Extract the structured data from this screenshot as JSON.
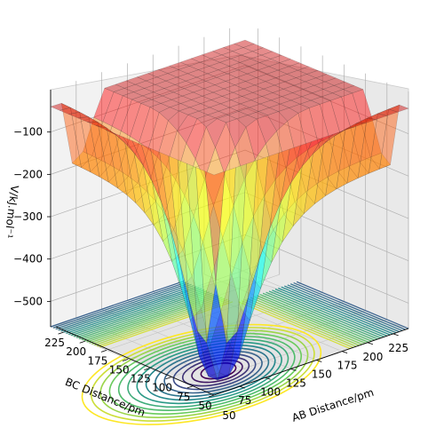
{
  "chart_data": {
    "type": "surface3d",
    "title": "",
    "xlabel": "AB Distance/pm",
    "ylabel": "BC Distance/pm",
    "zlabel": "V/kJ.mol⁻¹",
    "xlim": [
      50,
      240
    ],
    "ylim": [
      50,
      240
    ],
    "zlim": [
      -560,
      0
    ],
    "x_ticks": [
      "75",
      "100",
      "125",
      "150",
      "175",
      "200",
      "225"
    ],
    "x_tick_values": [
      75,
      100,
      125,
      150,
      175,
      200,
      225
    ],
    "x_edge_label": "50",
    "y_ticks": [
      "50",
      "75",
      "100",
      "125",
      "150",
      "175",
      "200",
      "225"
    ],
    "y_tick_values": [
      50,
      75,
      100,
      125,
      150,
      175,
      200,
      225
    ],
    "z_ticks": [
      "−500",
      "−400",
      "−300",
      "−200",
      "−100"
    ],
    "z_tick_values": [
      -500,
      -400,
      -300,
      -200,
      -100
    ],
    "surface": {
      "colormap": "jet-like, semi-transparent",
      "description_points": [
        {
          "x": 240,
          "y": 240,
          "z": -60
        },
        {
          "x": 50,
          "y": 240,
          "z": -120
        },
        {
          "x": 240,
          "y": 50,
          "z": -120
        },
        {
          "x": 75,
          "y": 75,
          "z": -560
        },
        {
          "x": 130,
          "y": 130,
          "z": -300
        }
      ]
    },
    "contour_floor": {
      "colormap": "viridis",
      "z_offset": -560
    },
    "grid": true,
    "legend": "none",
    "view": {
      "elev": 20,
      "azim": 45
    }
  }
}
